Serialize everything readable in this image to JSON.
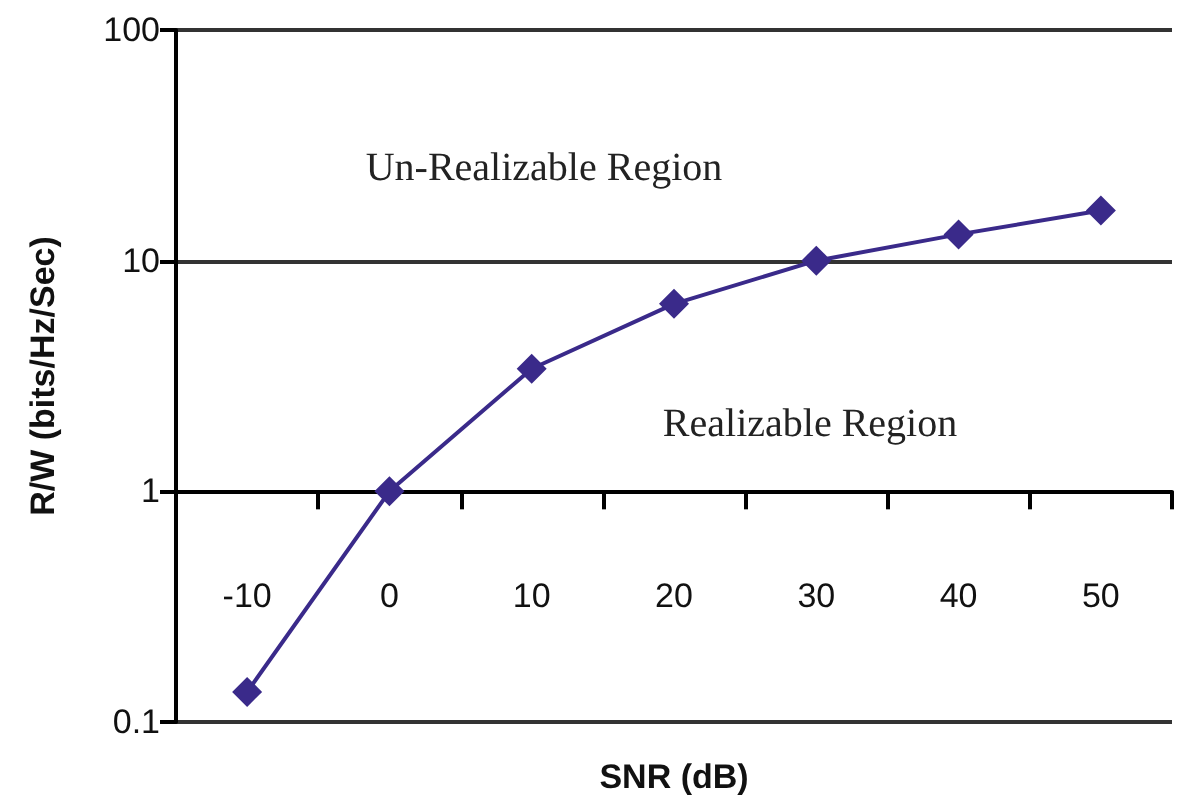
{
  "chart_data": {
    "type": "line",
    "xlabel": "SNR (dB)",
    "ylabel": "R/W (bits/Hz/Sec)",
    "categories": [
      "-10",
      "0",
      "10",
      "20",
      "30",
      "40",
      "50"
    ],
    "series": [
      {
        "color": "#3a2a8a",
        "values": [
          0.135,
          1,
          3.4,
          6.5,
          10,
          13,
          16.5
        ]
      }
    ],
    "log": "y",
    "ylim": [
      0.1,
      100
    ],
    "yticks": [
      0.1,
      1,
      10,
      100
    ],
    "grid": "y",
    "marker": "diamond",
    "line_style": "solid",
    "annotations": [
      "Un-Realizable Region",
      "Realizable Region"
    ]
  }
}
